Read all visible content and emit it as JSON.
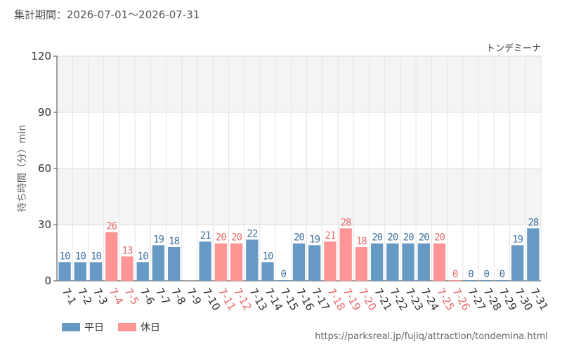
{
  "header": {
    "period": "集計期間：2026-07-01～2026-07-31"
  },
  "chart_data": {
    "type": "bar",
    "title": "トンデミーナ",
    "xlabel": "",
    "ylabel": "待ち時間（分）min",
    "ylim": [
      0,
      120
    ],
    "yticks": [
      0,
      30,
      60,
      90,
      120
    ],
    "categories": [
      "7-1",
      "7-2",
      "7-3",
      "7-4",
      "7-5",
      "7-6",
      "7-7",
      "7-8",
      "7-9",
      "7-10",
      "7-11",
      "7-12",
      "7-13",
      "7-14",
      "7-15",
      "7-16",
      "7-17",
      "7-18",
      "7-19",
      "7-20",
      "7-21",
      "7-22",
      "7-23",
      "7-24",
      "7-25",
      "7-26",
      "7-27",
      "7-28",
      "7-29",
      "7-30",
      "7-31"
    ],
    "values": [
      10,
      10,
      10,
      26,
      13,
      10,
      19,
      18,
      null,
      21,
      20,
      20,
      22,
      10,
      0,
      20,
      19,
      21,
      28,
      18,
      20,
      20,
      20,
      20,
      20,
      0,
      0,
      0,
      0,
      19,
      28
    ],
    "holiday": [
      false,
      false,
      false,
      true,
      true,
      false,
      false,
      false,
      false,
      false,
      true,
      true,
      false,
      false,
      false,
      false,
      false,
      true,
      true,
      true,
      false,
      false,
      false,
      false,
      true,
      true,
      false,
      false,
      false,
      false,
      false
    ],
    "colors": {
      "weekday": "#6699c4",
      "holiday": "#ff9494",
      "holiday_text": "#e86a6a",
      "weekday_text": "#3f6f9c"
    },
    "grid": true,
    "legend": {
      "position": "bottom-left",
      "items": [
        {
          "name": "平日",
          "color": "#6699c4"
        },
        {
          "name": "休日",
          "color": "#ff9494"
        }
      ]
    }
  },
  "footer": {
    "url": "https://parksreal.jp/fujiq/attraction/tondemina.html"
  }
}
